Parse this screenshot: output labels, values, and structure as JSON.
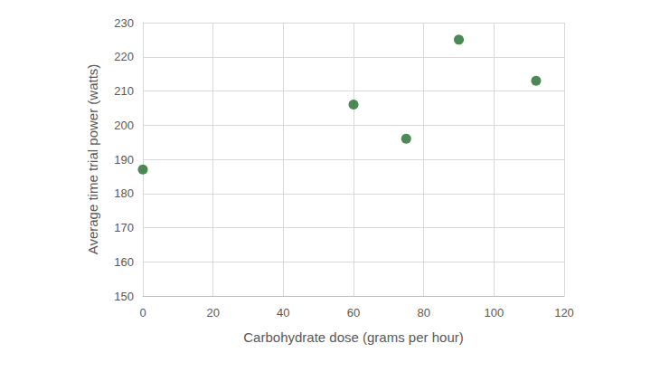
{
  "chart_data": {
    "type": "scatter",
    "x_label": "Carbohydrate dose (grams per hour)",
    "y_label": "Average time trial power (watts)",
    "x": [
      0,
      60,
      75,
      90,
      112
    ],
    "values": [
      187,
      206,
      196,
      225,
      213
    ],
    "color": "#1f6b2a",
    "marker": "circle",
    "xlim": [
      0,
      120
    ],
    "xticks": [
      0,
      20,
      40,
      60,
      80,
      100,
      120
    ],
    "ylim": [
      150,
      230
    ],
    "yticks": [
      150,
      160,
      170,
      180,
      190,
      200,
      210,
      220,
      230
    ],
    "grid": true
  }
}
